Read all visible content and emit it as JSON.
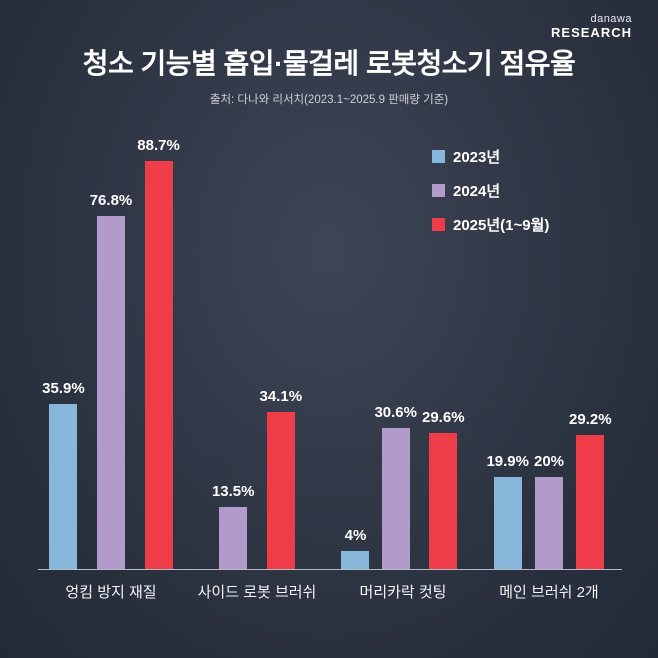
{
  "header": {
    "logo_top": "danawa",
    "logo_bottom": "RESEARCH",
    "title": "청소 기능별 흡입·물걸레 로봇청소기 점유율",
    "subtitle": "출처: 다나와 리서치(2023.1~2025.9 판매량 기준)"
  },
  "legend": {
    "position": "top-right",
    "items": [
      {
        "label": "2023년",
        "color": "#87b7da"
      },
      {
        "label": "2024년",
        "color": "#b29aca"
      },
      {
        "label": "2025년(1~9월)",
        "color": "#ee3c49"
      }
    ]
  },
  "chart_data": {
    "type": "bar",
    "title": "청소 기능별 흡입·물걸레 로봇청소기 점유율",
    "categories": [
      "엉킴 방지 재질",
      "사이드 로봇 브러쉬",
      "머리카락 컷팅",
      "메인 브러쉬 2개"
    ],
    "series": [
      {
        "name": "2023년",
        "color": "#87b7da",
        "values": [
          35.9,
          null,
          4,
          19.9
        ]
      },
      {
        "name": "2024년",
        "color": "#b29aca",
        "values": [
          76.8,
          13.5,
          30.6,
          20
        ]
      },
      {
        "name": "2025년(1~9월)",
        "color": "#ee3c49",
        "values": [
          88.7,
          34.1,
          29.6,
          29.2
        ]
      }
    ],
    "unit": "%",
    "ylim": [
      0,
      100
    ],
    "grid": false,
    "legend_position": "top-right"
  },
  "colors": {
    "background_center": "#3e4656",
    "background_edge": "#232935",
    "axis": "#b6bac2"
  }
}
